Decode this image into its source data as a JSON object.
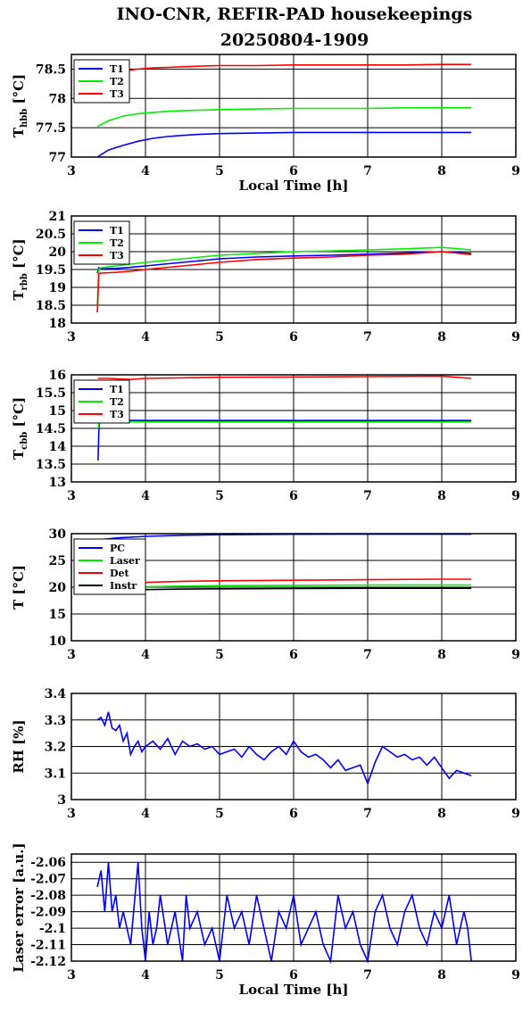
{
  "title": {
    "line1": "INO-CNR, REFIR-PAD housekeepings",
    "line2": "20250804-1909"
  },
  "colors": {
    "T1": "#0000ff",
    "T2": "#00ee00",
    "T3": "#ff0000",
    "PC": "#0000ff",
    "Laser": "#00ee00",
    "Det": "#ff0000",
    "Instr": "#000000"
  },
  "chart_data": [
    {
      "type": "line",
      "ylabel": "T",
      "ylabel_sub": "hbb",
      "ylabel_unit": "[°C]",
      "xlabel": "Local Time [h]",
      "xlim": [
        3,
        9
      ],
      "ylim": [
        77,
        78.75
      ],
      "yticks": [
        77,
        77.5,
        78,
        78.5
      ],
      "ytick_labels": [
        "77",
        "77.5",
        "78",
        "78.5"
      ],
      "xticks": [
        3,
        4,
        5,
        6,
        7,
        8,
        9
      ],
      "xtick_labels": [
        "3",
        "4",
        "5",
        "6",
        "7",
        "8",
        "9"
      ],
      "legend": "top-left",
      "series": [
        {
          "name": "T1",
          "color": "#0000ff",
          "x": [
            3.35,
            3.5,
            3.7,
            3.9,
            4.1,
            4.3,
            4.5,
            4.75,
            5,
            5.5,
            6,
            6.5,
            7,
            7.5,
            8,
            8.4
          ],
          "y": [
            77.0,
            77.12,
            77.2,
            77.27,
            77.32,
            77.35,
            77.37,
            77.39,
            77.4,
            77.41,
            77.42,
            77.42,
            77.42,
            77.42,
            77.42,
            77.42
          ]
        },
        {
          "name": "T2",
          "color": "#00ee00",
          "x": [
            3.35,
            3.5,
            3.7,
            3.9,
            4.1,
            4.3,
            4.5,
            4.75,
            5,
            5.5,
            6,
            6.5,
            7,
            7.5,
            8,
            8.4
          ],
          "y": [
            77.52,
            77.62,
            77.7,
            77.74,
            77.76,
            77.78,
            77.79,
            77.8,
            77.81,
            77.82,
            77.83,
            77.83,
            77.83,
            77.84,
            77.84,
            77.84
          ]
        },
        {
          "name": "T3",
          "color": "#ff0000",
          "x": [
            3.35,
            3.5,
            3.7,
            3.9,
            4.1,
            4.3,
            4.5,
            4.75,
            5,
            5.5,
            6,
            6.5,
            7,
            7.5,
            8,
            8.4
          ],
          "y": [
            78.4,
            78.44,
            78.47,
            78.5,
            78.52,
            78.53,
            78.54,
            78.55,
            78.56,
            78.56,
            78.57,
            78.57,
            78.57,
            78.57,
            78.58,
            78.58
          ]
        }
      ]
    },
    {
      "type": "line",
      "ylabel": "T",
      "ylabel_sub": "rbb",
      "ylabel_unit": "[°C]",
      "xlim": [
        3,
        9
      ],
      "ylim": [
        18,
        21
      ],
      "yticks": [
        18,
        18.5,
        19,
        19.5,
        20,
        20.5,
        21
      ],
      "ytick_labels": [
        "18",
        "18.5",
        "19",
        "19.5",
        "20",
        "20.5",
        "21"
      ],
      "xticks": [
        3,
        4,
        5,
        6,
        7,
        8,
        9
      ],
      "xtick_labels": [
        "3",
        "4",
        "5",
        "6",
        "7",
        "8",
        "9"
      ],
      "legend": "top-left",
      "series": [
        {
          "name": "T1",
          "color": "#0000ff",
          "x": [
            3.35,
            3.37,
            3.4,
            3.6,
            3.8,
            4,
            4.5,
            5,
            5.5,
            6,
            6.5,
            7,
            7.5,
            8,
            8.4
          ],
          "y": [
            19.4,
            19.55,
            19.52,
            19.53,
            19.56,
            19.6,
            19.7,
            19.8,
            19.85,
            19.88,
            19.9,
            19.93,
            19.96,
            20.0,
            19.95
          ]
        },
        {
          "name": "T2",
          "color": "#00ee00",
          "x": [
            3.35,
            3.37,
            3.4,
            3.6,
            3.8,
            4,
            4.5,
            5,
            5.5,
            6,
            6.5,
            7,
            7.5,
            8,
            8.4
          ],
          "y": [
            18.5,
            19.5,
            19.55,
            19.6,
            19.65,
            19.7,
            19.8,
            19.9,
            19.95,
            20.0,
            20.02,
            20.05,
            20.08,
            20.12,
            20.05
          ]
        },
        {
          "name": "T3",
          "color": "#ff0000",
          "x": [
            3.35,
            3.37,
            3.4,
            3.6,
            3.8,
            4,
            4.5,
            5,
            5.5,
            6,
            6.5,
            7,
            7.5,
            8,
            8.4
          ],
          "y": [
            18.3,
            19.38,
            19.4,
            19.42,
            19.45,
            19.5,
            19.6,
            19.7,
            19.78,
            19.82,
            19.85,
            19.9,
            19.93,
            20.0,
            19.92
          ]
        }
      ]
    },
    {
      "type": "line",
      "ylabel": "T",
      "ylabel_sub": "cbb",
      "ylabel_unit": "[°C]",
      "xlim": [
        3,
        9
      ],
      "ylim": [
        13,
        16
      ],
      "yticks": [
        13,
        13.5,
        14,
        14.5,
        15,
        15.5,
        16
      ],
      "ytick_labels": [
        "13",
        "13.5",
        "14",
        "14.5",
        "15",
        "15.5",
        "16"
      ],
      "xticks": [
        3,
        4,
        5,
        6,
        7,
        8,
        9
      ],
      "xtick_labels": [
        "3",
        "4",
        "5",
        "6",
        "7",
        "8",
        "9"
      ],
      "legend": "top-left",
      "series": [
        {
          "name": "T1",
          "color": "#0000ff",
          "x": [
            3.36,
            3.37,
            3.38,
            3.5,
            4,
            5,
            6,
            7,
            8,
            8.4
          ],
          "y": [
            13.6,
            14.4,
            14.72,
            14.73,
            14.72,
            14.72,
            14.72,
            14.72,
            14.72,
            14.72
          ]
        },
        {
          "name": "T2",
          "color": "#00ee00",
          "x": [
            3.36,
            3.37,
            3.38,
            3.5,
            4,
            5,
            6,
            7,
            8,
            8.4
          ],
          "y": [
            14.5,
            14.6,
            14.68,
            14.69,
            14.68,
            14.68,
            14.68,
            14.68,
            14.68,
            14.68
          ]
        },
        {
          "name": "T3",
          "color": "#ff0000",
          "x": [
            3.36,
            3.5,
            3.8,
            4,
            5,
            6,
            7,
            8,
            8.4
          ],
          "y": [
            15.9,
            15.9,
            15.87,
            15.9,
            15.93,
            15.94,
            15.95,
            15.96,
            15.9
          ]
        }
      ]
    },
    {
      "type": "line",
      "ylabel": "T [°C]",
      "xlim": [
        3,
        9
      ],
      "ylim": [
        10,
        30
      ],
      "yticks": [
        10,
        15,
        20,
        25,
        30
      ],
      "ytick_labels": [
        "10",
        "15",
        "20",
        "25",
        "30"
      ],
      "xticks": [
        3,
        4,
        5,
        6,
        7,
        8,
        9
      ],
      "xtick_labels": [
        "3",
        "4",
        "5",
        "6",
        "7",
        "8",
        "9"
      ],
      "legend": "top-left",
      "series": [
        {
          "name": "PC",
          "color": "#0000ff",
          "x": [
            3.35,
            3.6,
            4,
            4.5,
            5,
            5.5,
            6,
            7,
            8,
            8.4
          ],
          "y": [
            28.8,
            29.2,
            29.5,
            29.7,
            29.8,
            29.85,
            29.88,
            29.9,
            29.9,
            29.9
          ]
        },
        {
          "name": "Laser",
          "color": "#00ee00",
          "x": [
            3.35,
            3.6,
            4,
            4.5,
            5,
            6,
            7,
            8,
            8.4
          ],
          "y": [
            19.8,
            20.0,
            20.1,
            20.2,
            20.3,
            20.35,
            20.4,
            20.4,
            20.4
          ]
        },
        {
          "name": "Det",
          "color": "#ff0000",
          "x": [
            3.35,
            3.6,
            4,
            4.5,
            5,
            6,
            7,
            8,
            8.4
          ],
          "y": [
            20.3,
            20.6,
            20.9,
            21.1,
            21.2,
            21.3,
            21.4,
            21.5,
            21.5
          ]
        },
        {
          "name": "Instr",
          "color": "#000000",
          "x": [
            3.35,
            3.6,
            4,
            4.5,
            5,
            6,
            7,
            8,
            8.4
          ],
          "y": [
            19.3,
            19.45,
            19.55,
            19.65,
            19.7,
            19.75,
            19.8,
            19.8,
            19.8
          ]
        }
      ]
    },
    {
      "type": "line",
      "ylabel": "RH [%]",
      "xlim": [
        3,
        9
      ],
      "ylim": [
        3,
        3.4
      ],
      "yticks": [
        3,
        3.1,
        3.2,
        3.3,
        3.4
      ],
      "ytick_labels": [
        "3",
        "3.1",
        "3.2",
        "3.3",
        "3.4"
      ],
      "xticks": [
        3,
        4,
        5,
        6,
        7,
        8,
        9
      ],
      "xtick_labels": [
        "3",
        "4",
        "5",
        "6",
        "7",
        "8",
        "9"
      ],
      "series": [
        {
          "name": "",
          "color": "#0000ff",
          "x": [
            3.35,
            3.4,
            3.45,
            3.5,
            3.55,
            3.6,
            3.65,
            3.7,
            3.75,
            3.8,
            3.85,
            3.9,
            3.95,
            4.0,
            4.1,
            4.2,
            4.3,
            4.4,
            4.5,
            4.6,
            4.7,
            4.8,
            4.9,
            5.0,
            5.1,
            5.2,
            5.3,
            5.4,
            5.5,
            5.6,
            5.7,
            5.8,
            5.9,
            6.0,
            6.1,
            6.2,
            6.3,
            6.4,
            6.5,
            6.6,
            6.7,
            6.8,
            6.9,
            7.0,
            7.1,
            7.2,
            7.3,
            7.4,
            7.5,
            7.6,
            7.7,
            7.8,
            7.9,
            8.0,
            8.1,
            8.2,
            8.3,
            8.4
          ],
          "y": [
            3.3,
            3.31,
            3.28,
            3.33,
            3.27,
            3.26,
            3.28,
            3.22,
            3.25,
            3.17,
            3.2,
            3.22,
            3.18,
            3.2,
            3.22,
            3.19,
            3.23,
            3.17,
            3.22,
            3.2,
            3.21,
            3.19,
            3.2,
            3.17,
            3.18,
            3.19,
            3.16,
            3.2,
            3.17,
            3.15,
            3.18,
            3.2,
            3.17,
            3.22,
            3.18,
            3.16,
            3.17,
            3.15,
            3.12,
            3.15,
            3.11,
            3.12,
            3.13,
            3.06,
            3.14,
            3.2,
            3.18,
            3.16,
            3.17,
            3.15,
            3.16,
            3.13,
            3.16,
            3.12,
            3.08,
            3.11,
            3.1,
            3.09
          ]
        }
      ]
    },
    {
      "type": "line",
      "ylabel": "Laser error [a.u.]",
      "xlabel": "Local Time [h]",
      "xlim": [
        3,
        9
      ],
      "ylim": [
        -2.12,
        -2.055
      ],
      "yticks": [
        -2.12,
        -2.11,
        -2.1,
        -2.09,
        -2.08,
        -2.07,
        -2.06
      ],
      "ytick_labels": [
        "-2.12",
        "-2.11",
        "-2.1",
        "-2.09",
        "-2.08",
        "-2.07",
        "-2.06"
      ],
      "xticks": [
        3,
        4,
        5,
        6,
        7,
        8,
        9
      ],
      "xtick_labels": [
        "3",
        "4",
        "5",
        "6",
        "7",
        "8",
        "9"
      ],
      "series": [
        {
          "name": "",
          "color": "#0000ff",
          "x": [
            3.35,
            3.4,
            3.45,
            3.5,
            3.55,
            3.6,
            3.65,
            3.7,
            3.8,
            3.9,
            3.95,
            4.0,
            4.05,
            4.1,
            4.15,
            4.2,
            4.3,
            4.4,
            4.5,
            4.55,
            4.6,
            4.7,
            4.8,
            4.9,
            5.0,
            5.1,
            5.2,
            5.3,
            5.4,
            5.5,
            5.6,
            5.7,
            5.8,
            5.9,
            6.0,
            6.1,
            6.2,
            6.3,
            6.4,
            6.5,
            6.6,
            6.7,
            6.8,
            6.9,
            7.0,
            7.1,
            7.2,
            7.3,
            7.4,
            7.5,
            7.6,
            7.7,
            7.8,
            7.9,
            8.0,
            8.1,
            8.2,
            8.3,
            8.35,
            8.4
          ],
          "y": [
            -2.075,
            -2.065,
            -2.09,
            -2.06,
            -2.09,
            -2.08,
            -2.1,
            -2.09,
            -2.11,
            -2.06,
            -2.1,
            -2.12,
            -2.09,
            -2.11,
            -2.1,
            -2.08,
            -2.11,
            -2.09,
            -2.12,
            -2.08,
            -2.1,
            -2.09,
            -2.11,
            -2.1,
            -2.12,
            -2.08,
            -2.1,
            -2.09,
            -2.11,
            -2.08,
            -2.1,
            -2.12,
            -2.09,
            -2.1,
            -2.08,
            -2.11,
            -2.1,
            -2.09,
            -2.11,
            -2.12,
            -2.08,
            -2.1,
            -2.09,
            -2.11,
            -2.12,
            -2.09,
            -2.08,
            -2.1,
            -2.11,
            -2.09,
            -2.08,
            -2.1,
            -2.11,
            -2.09,
            -2.1,
            -2.08,
            -2.11,
            -2.09,
            -2.1,
            -2.12
          ]
        }
      ]
    }
  ]
}
